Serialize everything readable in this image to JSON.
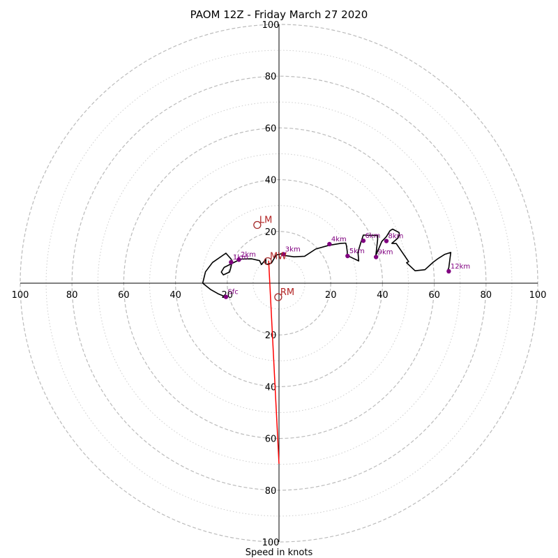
{
  "chart_data": {
    "type": "hodograph",
    "title": "PAOM 12Z - Friday March 27 2020",
    "xlabel": "Speed in knots",
    "rings": [
      10,
      20,
      30,
      40,
      50,
      60,
      70,
      80,
      90,
      100
    ],
    "range": [
      -100,
      100
    ],
    "tick_labels": {
      "x": [
        {
          "value": -100,
          "label": "100"
        },
        {
          "value": -80,
          "label": "80"
        },
        {
          "value": -60,
          "label": "60"
        },
        {
          "value": -40,
          "label": "40"
        },
        {
          "value": -20,
          "label": "20"
        },
        {
          "value": 20,
          "label": "20"
        },
        {
          "value": 40,
          "label": "40"
        },
        {
          "value": 60,
          "label": "60"
        },
        {
          "value": 80,
          "label": "80"
        },
        {
          "value": 100,
          "label": "100"
        }
      ],
      "y": [
        {
          "value": 100,
          "label": "100"
        },
        {
          "value": 80,
          "label": "80"
        },
        {
          "value": 60,
          "label": "60"
        },
        {
          "value": 40,
          "label": "40"
        },
        {
          "value": 20,
          "label": "20"
        },
        {
          "value": -20,
          "label": "20"
        },
        {
          "value": -40,
          "label": "40"
        },
        {
          "value": -60,
          "label": "60"
        },
        {
          "value": -80,
          "label": "80"
        },
        {
          "value": -100,
          "label": "100"
        }
      ]
    },
    "grid": true,
    "hodograph": {
      "u": [
        -20.5,
        -23.5,
        -26.5,
        -29.5,
        -28.4,
        -25.7,
        -20.5,
        -18.5,
        -18.2,
        -18.6,
        -19.1,
        -21.5,
        -22.3,
        -21.2,
        -17.2,
        -14.8,
        -10.5,
        -7.5,
        -6.8,
        -5.1,
        -5.1,
        -4.5,
        -2.9,
        -1.1,
        0.1,
        0.9,
        1.5,
        5.8,
        9.9,
        14.2,
        19.2,
        23.8,
        25.8,
        26.1,
        26.4,
        26.4,
        26.6,
        30.8,
        30.5,
        31.6,
        32.6,
        35.9,
        38.2,
        38.1,
        38.1,
        37.4,
        39.7,
        41.5,
        42.9,
        43.9,
        46.4,
        46.5,
        46.0,
        43.6,
        45.3,
        50.1,
        49.3,
        52.6,
        56.4,
        59.6,
        61.6,
        64.0,
        66.4,
        65.6,
        65.2,
        65.6,
        65.7
      ],
      "v": [
        -5.3,
        -4.1,
        -2.4,
        0.0,
        4.4,
        8.0,
        11.6,
        9.3,
        8.1,
        6.1,
        4.3,
        3.2,
        4.3,
        6.1,
        8.1,
        9.3,
        9.4,
        8.7,
        7.2,
        9.2,
        7.4,
        7.3,
        7.8,
        10.9,
        11.1,
        11.4,
        10.8,
        10.2,
        10.4,
        13.2,
        14.6,
        15.4,
        15.5,
        14.4,
        12.1,
        10.5,
        10.6,
        8.6,
        12.0,
        15.6,
        18.6,
        18.5,
        18.4,
        17.6,
        16.8,
        10.7,
        16.1,
        18.0,
        20.3,
        20.9,
        19.6,
        18.8,
        17.5,
        15.4,
        15.3,
        8.3,
        7.9,
        4.8,
        5.2,
        8.1,
        9.6,
        11.1,
        11.9,
        5.9,
        5.0,
        4.1,
        4.1
      ]
    },
    "height_markers": [
      {
        "label": "Sfc",
        "u": -20.5,
        "v": -5.3
      },
      {
        "label": "1km",
        "u": -18.5,
        "v": 8.1
      },
      {
        "label": "2km",
        "u": -15.5,
        "v": 9.1
      },
      {
        "label": "3km",
        "u": 1.7,
        "v": 11.2
      },
      {
        "label": "4km",
        "u": 19.5,
        "v": 15.1
      },
      {
        "label": "5km",
        "u": 26.5,
        "v": 10.5
      },
      {
        "label": "6km",
        "u": 32.6,
        "v": 16.4
      },
      {
        "label": "8km",
        "u": 41.5,
        "v": 16.3
      },
      {
        "label": "9km",
        "u": 37.5,
        "v": 10.1
      },
      {
        "label": "12km",
        "u": 65.6,
        "v": 4.6
      }
    ],
    "storm_motions": [
      {
        "label": "LM",
        "u": -8.4,
        "v": 22.5
      },
      {
        "label": "MW",
        "u": -4.3,
        "v": 8.5
      },
      {
        "label": "RM",
        "u": -0.3,
        "v": -5.4
      }
    ],
    "shear_vector": {
      "u1": 0,
      "v1": -69.8,
      "u2": -4.0,
      "v2": 8.7
    }
  }
}
